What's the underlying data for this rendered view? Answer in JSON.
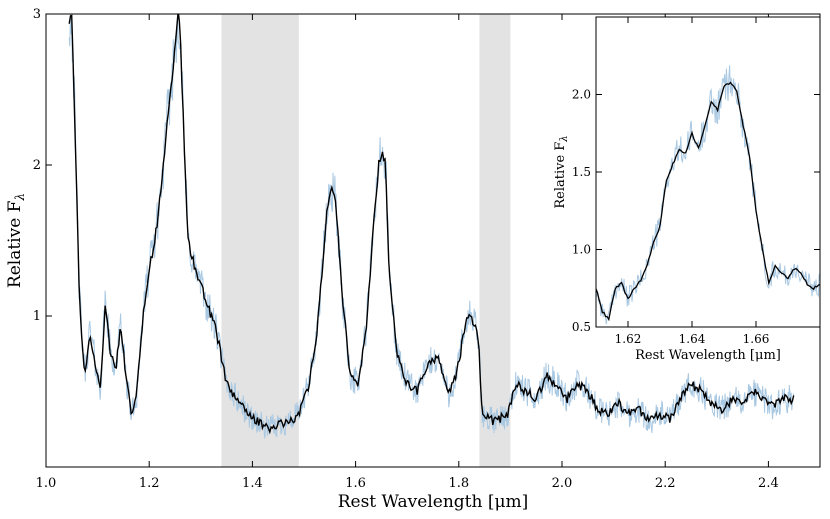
{
  "chart_data": [
    {
      "type": "line",
      "title": "",
      "xlabel": "Rest Wavelength [μm]",
      "ylabel": "Relative F",
      "ylabel_subscript": "λ",
      "xlim": [
        1.0,
        2.5
      ],
      "ylim": [
        0,
        3
      ],
      "xticks": [
        "1.0",
        "1.2",
        "1.4",
        "1.6",
        "1.8",
        "2.0",
        "2.2",
        "2.4"
      ],
      "xtick_values": [
        1.0,
        1.2,
        1.4,
        1.6,
        1.8,
        2.0,
        2.2,
        2.4
      ],
      "yticks": [
        "1",
        "2",
        "3"
      ],
      "ytick_values": [
        1,
        2,
        3
      ],
      "shaded_regions": [
        [
          1.34,
          1.49
        ],
        [
          1.84,
          1.9
        ]
      ],
      "series": [
        {
          "name": "observed spectrum",
          "color": "#a9c8e2",
          "noise": 0.12
        },
        {
          "name": "smoothed spectrum",
          "color": "#000000",
          "x": [
            1.045,
            1.05,
            1.055,
            1.065,
            1.075,
            1.085,
            1.095,
            1.105,
            1.115,
            1.125,
            1.135,
            1.145,
            1.155,
            1.165,
            1.175,
            1.185,
            1.195,
            1.205,
            1.215,
            1.225,
            1.235,
            1.245,
            1.252,
            1.256,
            1.26,
            1.264,
            1.268,
            1.275,
            1.29,
            1.31,
            1.33,
            1.35,
            1.37,
            1.39,
            1.41,
            1.43,
            1.45,
            1.47,
            1.49,
            1.51,
            1.525,
            1.535,
            1.545,
            1.553,
            1.56,
            1.575,
            1.59,
            1.605,
            1.62,
            1.635,
            1.645,
            1.652,
            1.658,
            1.665,
            1.68,
            1.7,
            1.72,
            1.74,
            1.76,
            1.78,
            1.795,
            1.808,
            1.815,
            1.823,
            1.83,
            1.838,
            1.845,
            1.87,
            1.895,
            1.91,
            1.93,
            1.95,
            1.97,
            1.99,
            2.01,
            2.03,
            2.05,
            2.07,
            2.09,
            2.11,
            2.13,
            2.15,
            2.17,
            2.19,
            2.21,
            2.23,
            2.25,
            2.27,
            2.29,
            2.31,
            2.33,
            2.35,
            2.37,
            2.39,
            2.41,
            2.43,
            2.45
          ],
          "y": [
            2.95,
            3.0,
            2.4,
            1.1,
            0.6,
            0.9,
            0.7,
            0.5,
            1.1,
            0.75,
            0.65,
            0.95,
            0.6,
            0.35,
            0.45,
            0.9,
            1.2,
            1.4,
            1.6,
            1.9,
            2.3,
            2.6,
            2.85,
            3.0,
            2.9,
            2.5,
            2.1,
            1.5,
            1.3,
            1.1,
            0.9,
            0.55,
            0.45,
            0.35,
            0.3,
            0.25,
            0.28,
            0.3,
            0.35,
            0.55,
            0.9,
            1.3,
            1.7,
            1.85,
            1.8,
            1.1,
            0.6,
            0.55,
            0.9,
            1.6,
            2.0,
            2.08,
            2.0,
            1.3,
            0.75,
            0.55,
            0.5,
            0.68,
            0.72,
            0.48,
            0.6,
            0.85,
            0.97,
            1.0,
            0.95,
            0.85,
            0.35,
            0.3,
            0.35,
            0.55,
            0.5,
            0.45,
            0.6,
            0.55,
            0.45,
            0.55,
            0.5,
            0.38,
            0.35,
            0.42,
            0.35,
            0.38,
            0.3,
            0.35,
            0.32,
            0.45,
            0.55,
            0.5,
            0.42,
            0.38,
            0.45,
            0.42,
            0.5,
            0.45,
            0.4,
            0.45,
            0.45
          ]
        }
      ]
    },
    {
      "type": "line",
      "title": "",
      "xlabel": "Rest Wavelength [μm]",
      "ylabel": "Relative F",
      "ylabel_subscript": "λ",
      "xlim": [
        1.61,
        1.68
      ],
      "ylim": [
        0.5,
        2.5
      ],
      "xticks": [
        "1.62",
        "1.64",
        "1.66"
      ],
      "xtick_values": [
        1.62,
        1.64,
        1.66
      ],
      "yticks": [
        "0.5",
        "1.0",
        "1.5",
        "2.0"
      ],
      "ytick_values": [
        0.5,
        1.0,
        1.5,
        2.0
      ],
      "series": [
        {
          "name": "observed spectrum",
          "color": "#a9c8e2",
          "noise": 0.08
        },
        {
          "name": "smoothed spectrum",
          "color": "#000000",
          "x": [
            1.61,
            1.612,
            1.614,
            1.616,
            1.618,
            1.62,
            1.622,
            1.624,
            1.626,
            1.628,
            1.63,
            1.632,
            1.634,
            1.636,
            1.638,
            1.64,
            1.642,
            1.644,
            1.646,
            1.648,
            1.65,
            1.652,
            1.654,
            1.656,
            1.658,
            1.66,
            1.662,
            1.664,
            1.666,
            1.668,
            1.67,
            1.672,
            1.674,
            1.676,
            1.678,
            1.68
          ],
          "y": [
            0.75,
            0.6,
            0.55,
            0.75,
            0.78,
            0.68,
            0.75,
            0.8,
            0.9,
            1.05,
            1.15,
            1.45,
            1.55,
            1.65,
            1.62,
            1.75,
            1.65,
            1.8,
            1.95,
            1.9,
            2.05,
            2.08,
            2.02,
            1.8,
            1.6,
            1.25,
            1.0,
            0.78,
            0.9,
            0.85,
            0.82,
            0.88,
            0.85,
            0.78,
            0.75,
            0.78
          ]
        }
      ]
    }
  ]
}
